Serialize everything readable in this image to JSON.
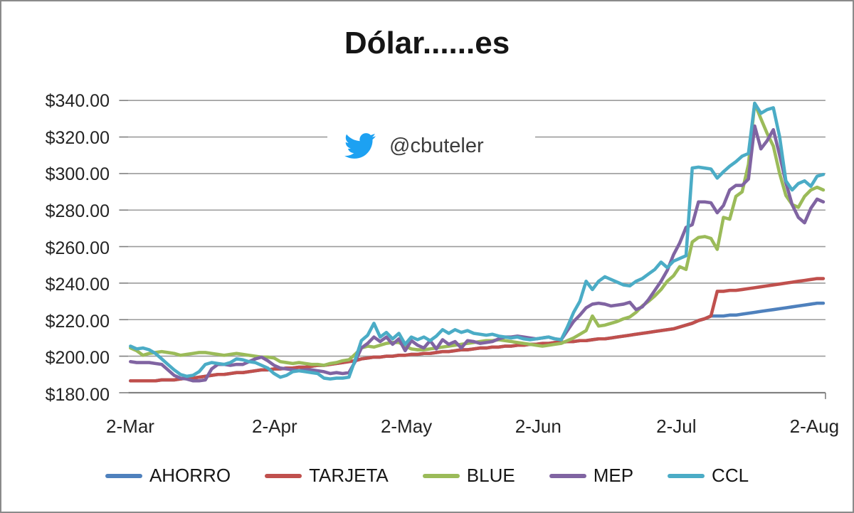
{
  "window": {
    "background": "#ffffff",
    "border_color": "#8a8a8a"
  },
  "annotation": {
    "icon": "twitter-bird-icon",
    "icon_color": "#1da1f2",
    "handle": "@cbuteler"
  },
  "chart_data": {
    "type": "line",
    "title": "Dólar......es",
    "grid": true,
    "legend_position": "bottom",
    "ylim": [
      180,
      340
    ],
    "ylabel": "",
    "xlabel": "",
    "y_tick_values": [
      180,
      200,
      220,
      240,
      260,
      280,
      300,
      320,
      340
    ],
    "y_tick_labels": [
      "$180.00",
      "$200.00",
      "$220.00",
      "$240.00",
      "$260.00",
      "$280.00",
      "$300.00",
      "$320.00",
      "$340.00"
    ],
    "x_tick_labels": [
      "2-Mar",
      "2-Apr",
      "2-May",
      "2-Jun",
      "2-Jul",
      "2-Aug"
    ],
    "x_tick_indices": [
      0,
      23,
      44,
      65,
      87,
      109
    ],
    "n_points": 112,
    "series": [
      {
        "name": "AHORRO",
        "color": "#4F81BD",
        "values": [
          186.5,
          186.5,
          186.5,
          186.5,
          186.5,
          187,
          187,
          187,
          187.5,
          188,
          188,
          188.5,
          189,
          189.5,
          190,
          190,
          190.5,
          191,
          191,
          191.5,
          192,
          192.5,
          192.5,
          193,
          193,
          193.5,
          193.5,
          194,
          194,
          194.5,
          195,
          195,
          195.5,
          196,
          196.5,
          197,
          197.5,
          198.5,
          199,
          199.5,
          199.5,
          200,
          200,
          200.5,
          200.5,
          201,
          201,
          201.5,
          201.5,
          202,
          202.5,
          202.5,
          203,
          203.5,
          203.5,
          204,
          204.5,
          204.5,
          205,
          205,
          205.5,
          205.5,
          206,
          206,
          206.5,
          206.5,
          207,
          207,
          207.5,
          207.5,
          208,
          208,
          208.5,
          208.5,
          209,
          209.5,
          209.5,
          210,
          210.5,
          211,
          211.5,
          212,
          212.5,
          213,
          213.5,
          214,
          214.5,
          215,
          216,
          217,
          218,
          219.5,
          220.5,
          222,
          222,
          222,
          222.5,
          222.5,
          223,
          223.5,
          224,
          224.5,
          225,
          225.5,
          226,
          226.5,
          227,
          227.5,
          228,
          228.5,
          229,
          229
        ]
      },
      {
        "name": "TARJETA",
        "color": "#C0504D",
        "values": [
          186.5,
          186.5,
          186.5,
          186.5,
          186.5,
          187,
          187,
          187,
          187.5,
          188,
          188,
          188.5,
          189,
          189.5,
          190,
          190,
          190.5,
          191,
          191,
          191.5,
          192,
          192.5,
          192.5,
          193,
          193,
          193.5,
          193.5,
          194,
          194,
          194.5,
          195,
          195,
          195.5,
          196,
          196.5,
          197,
          197.5,
          198.5,
          199,
          199.5,
          199.5,
          200,
          200,
          200.5,
          200.5,
          201,
          201,
          201.5,
          201.5,
          202,
          202.5,
          202.5,
          203,
          203.5,
          203.5,
          204,
          204.5,
          204.5,
          205,
          205,
          205.5,
          205.5,
          206,
          206,
          206.5,
          206.5,
          207,
          207,
          207.5,
          207.5,
          208,
          208,
          208.5,
          208.5,
          209,
          209.5,
          209.5,
          210,
          210.5,
          211,
          211.5,
          212,
          212.5,
          213,
          213.5,
          214,
          214.5,
          215,
          216,
          217,
          218,
          219.5,
          220.5,
          222,
          235.5,
          235.5,
          236,
          236,
          236.5,
          237,
          237.5,
          238,
          238.5,
          239,
          239.5,
          240,
          240.5,
          241,
          241.5,
          242,
          242.5,
          242.5
        ]
      },
      {
        "name": "BLUE",
        "color": "#9BBB59",
        "values": [
          204.5,
          203,
          200.5,
          201.5,
          202,
          202.5,
          202,
          201.5,
          200.5,
          201,
          201.5,
          202,
          202,
          201.5,
          201,
          200.5,
          201,
          201.5,
          201,
          200.5,
          200,
          199.5,
          199.5,
          199,
          197,
          196.5,
          196,
          196.5,
          196,
          195.5,
          195.5,
          195,
          196,
          196.5,
          197.5,
          198,
          201,
          204.5,
          205.5,
          205,
          206,
          207,
          207.5,
          207.5,
          205.5,
          204,
          203.5,
          203.5,
          204,
          204.5,
          205,
          205.5,
          206,
          206.5,
          207,
          207.5,
          208,
          208.5,
          208.5,
          209,
          208.5,
          208,
          207.5,
          207,
          206.5,
          206,
          205.5,
          206,
          206.5,
          207,
          208.5,
          210,
          212,
          214,
          222,
          216.5,
          217,
          218,
          219,
          220.5,
          221.5,
          224,
          227.5,
          230,
          233,
          236.5,
          241,
          244,
          249,
          247.5,
          262.5,
          265,
          265.5,
          264.5,
          258.5,
          276,
          275,
          287.5,
          290,
          305,
          338.5,
          330,
          322,
          315,
          300,
          288,
          283,
          281.5,
          287.5,
          291,
          292.5,
          291
        ]
      },
      {
        "name": "MEP",
        "color": "#8064A2",
        "values": [
          197,
          196.5,
          196.5,
          196.5,
          196,
          195.5,
          192.5,
          189.5,
          188,
          187.5,
          186.5,
          186.5,
          187,
          193,
          195.5,
          195.5,
          195,
          195.5,
          195.5,
          197,
          198.5,
          199.5,
          197.5,
          195,
          193.5,
          193,
          192.5,
          192,
          192.5,
          192.5,
          192,
          191.5,
          190.5,
          191,
          190.5,
          191,
          197,
          204.5,
          207,
          210.5,
          208,
          210.5,
          206.5,
          209.5,
          203,
          208.5,
          206,
          204.5,
          208.5,
          204,
          209,
          206.5,
          208,
          204.5,
          208.5,
          208,
          207,
          207.5,
          208,
          209.5,
          210.5,
          210.5,
          211,
          210.5,
          210,
          209.5,
          210,
          210.5,
          209.5,
          209,
          214,
          219,
          222.5,
          226.5,
          228.5,
          229,
          228.5,
          227.5,
          228,
          228.5,
          229.5,
          225.5,
          227,
          231,
          236,
          241,
          247,
          255.5,
          262,
          270.5,
          272,
          284.5,
          284.5,
          284,
          278.5,
          282.5,
          291,
          293.5,
          293.5,
          297,
          326,
          313.5,
          318,
          324,
          310,
          295,
          283,
          276,
          273,
          281,
          286,
          284.5
        ]
      },
      {
        "name": "CCL",
        "color": "#4BACC6",
        "values": [
          205.5,
          204,
          204.5,
          203.5,
          201.5,
          198.5,
          195.5,
          192.5,
          190,
          189,
          189.5,
          191.5,
          195.5,
          196.5,
          196,
          195.5,
          196.5,
          198.5,
          198,
          197,
          196.5,
          195,
          193.5,
          190.5,
          188.5,
          189.5,
          191.5,
          192,
          191.5,
          191,
          190.5,
          188,
          187.5,
          188,
          188,
          188.5,
          198,
          208.5,
          211.5,
          218,
          210.5,
          213,
          209.5,
          212.5,
          206.5,
          210.5,
          209,
          210.5,
          208.5,
          211,
          214.5,
          212.5,
          214.5,
          213,
          214,
          212.5,
          212,
          211.5,
          212,
          211,
          210.5,
          210,
          210.5,
          209.5,
          209,
          209.5,
          210,
          210.5,
          209.5,
          209,
          216,
          224,
          230,
          241,
          236.5,
          241,
          243.5,
          242,
          240.5,
          239,
          238.5,
          241,
          242.5,
          245,
          247.5,
          251.5,
          248.5,
          252,
          253.5,
          255,
          303,
          303.5,
          303,
          302.5,
          297.5,
          301,
          304,
          306.5,
          309.5,
          311,
          338.5,
          333,
          335,
          336,
          320,
          296,
          291,
          294.5,
          296,
          293,
          298.5,
          299.5
        ]
      }
    ]
  }
}
